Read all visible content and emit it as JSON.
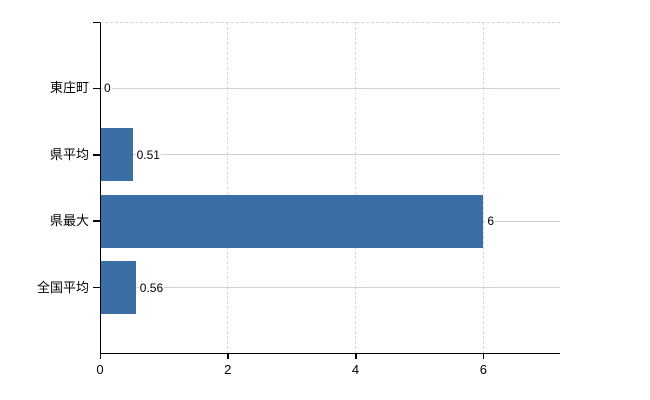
{
  "chart_data": {
    "type": "bar",
    "orientation": "horizontal",
    "title": "",
    "categories": [
      "東庄町",
      "県平均",
      "県最大",
      "全国平均"
    ],
    "values": [
      0,
      0.51,
      6,
      0.56
    ],
    "value_labels": [
      "0",
      "0.51",
      "6",
      "0.56"
    ],
    "x_ticks": [
      0,
      2,
      4,
      6
    ],
    "x_tick_labels": [
      "0",
      "2",
      "4",
      "6"
    ],
    "xlim": [
      0,
      7.2
    ],
    "xlabel": "",
    "ylabel": "",
    "grid": true,
    "legend": false,
    "colors": {
      "bar": "#3b6ea5",
      "axis": "#000000",
      "h_grid": "#ccd6cc",
      "v_grid": "#d8d4d8",
      "border_top": "#d4d4d4",
      "text": "#000000",
      "background": "#ffffff"
    }
  }
}
